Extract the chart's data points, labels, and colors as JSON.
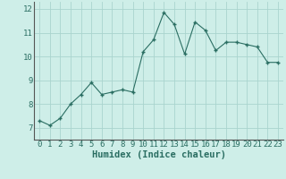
{
  "x": [
    0,
    1,
    2,
    3,
    4,
    5,
    6,
    7,
    8,
    9,
    10,
    11,
    12,
    13,
    14,
    15,
    16,
    17,
    18,
    19,
    20,
    21,
    22,
    23
  ],
  "y": [
    7.3,
    7.1,
    7.4,
    8.0,
    8.4,
    8.9,
    8.4,
    8.5,
    8.6,
    8.5,
    10.2,
    10.7,
    11.85,
    11.35,
    10.1,
    11.45,
    11.1,
    10.25,
    10.6,
    10.6,
    10.5,
    10.4,
    9.75,
    9.75
  ],
  "xlabel": "Humidex (Indice chaleur)",
  "ylim": [
    6.5,
    12.3
  ],
  "xlim": [
    -0.5,
    23.5
  ],
  "yticks": [
    7,
    8,
    9,
    10,
    11,
    12
  ],
  "xticks": [
    0,
    1,
    2,
    3,
    4,
    5,
    6,
    7,
    8,
    9,
    10,
    11,
    12,
    13,
    14,
    15,
    16,
    17,
    18,
    19,
    20,
    21,
    22,
    23
  ],
  "line_color": "#2a6e62",
  "marker_color": "#2a6e62",
  "bg_color": "#ceeee8",
  "grid_color": "#aad4ce",
  "tick_fontsize": 6.5,
  "xlabel_fontsize": 7.5
}
